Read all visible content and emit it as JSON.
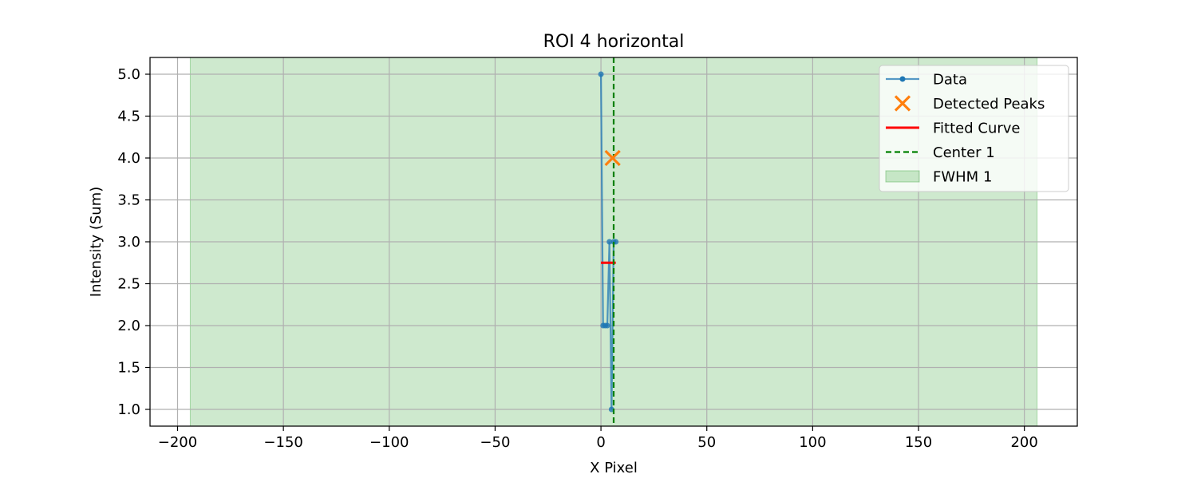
{
  "chart_data": {
    "type": "line",
    "title": "ROI 4 horizontal",
    "xlabel": "X Pixel",
    "ylabel": "Intensity (Sum)",
    "xlim": [
      -213,
      225
    ],
    "ylim": [
      0.8,
      5.2
    ],
    "xticks": [
      -200,
      -150,
      -100,
      -50,
      0,
      50,
      100,
      150,
      200
    ],
    "xtick_labels": [
      "−200",
      "−150",
      "−100",
      "−50",
      "0",
      "50",
      "100",
      "150",
      "200"
    ],
    "yticks": [
      1.0,
      1.5,
      2.0,
      2.5,
      3.0,
      3.5,
      4.0,
      4.5,
      5.0
    ],
    "ytick_labels": [
      "1.0",
      "1.5",
      "2.0",
      "2.5",
      "3.0",
      "3.5",
      "4.0",
      "4.5",
      "5.0"
    ],
    "grid": true,
    "legend_position": "top-right",
    "series": [
      {
        "name": "Data",
        "kind": "line-marker",
        "color": "#1f77b4",
        "x": [
          0,
          1,
          2,
          3,
          4,
          5,
          6,
          7
        ],
        "y": [
          5,
          2,
          2,
          2,
          3,
          1,
          3,
          3
        ]
      },
      {
        "name": "Detected Peaks",
        "kind": "x-marker",
        "color": "#ff7f0e",
        "x": [
          5.5
        ],
        "y": [
          4
        ]
      },
      {
        "name": "Fitted Curve",
        "kind": "line",
        "color": "#ff0000",
        "x": [
          0,
          7
        ],
        "y": [
          2.75,
          2.75
        ]
      },
      {
        "name": "Center 1",
        "kind": "vline-dashed",
        "color": "#008000",
        "x": 6
      },
      {
        "name": "FWHM 1",
        "kind": "vspan",
        "color": "#2ca02c",
        "x_range": [
          -194,
          206
        ]
      }
    ]
  }
}
